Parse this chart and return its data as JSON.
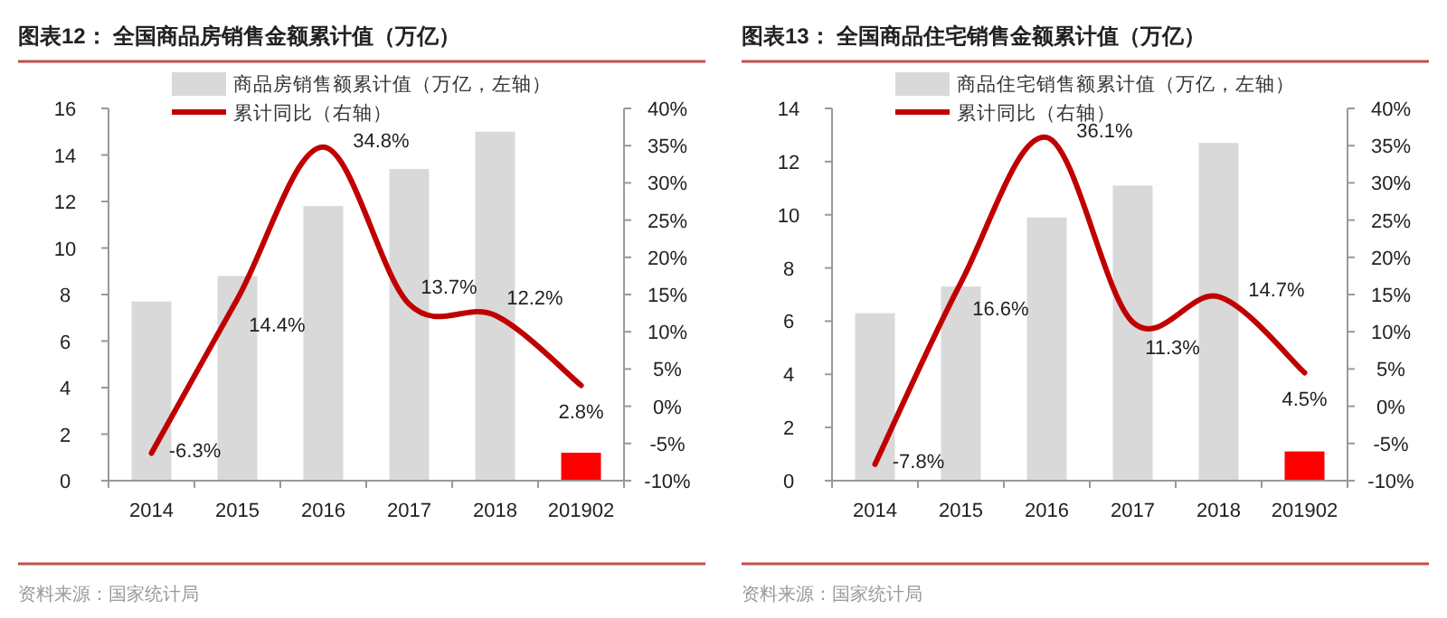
{
  "chart_data": [
    {
      "type": "bar",
      "title": "图表12：  全国商品房销售金额累计值（万亿）",
      "categories": [
        "2014",
        "2015",
        "2016",
        "2017",
        "2018",
        "201902"
      ],
      "series": [
        {
          "name": "商品房销售额累计值（万亿，左轴）",
          "colors": [
            "#d9d9d9",
            "#d9d9d9",
            "#d9d9d9",
            "#d9d9d9",
            "#d9d9d9",
            "#ff0000"
          ],
          "values": [
            7.7,
            8.8,
            11.8,
            13.4,
            15.0,
            1.2
          ]
        },
        {
          "name": "累计同比（右轴）",
          "type": "line",
          "axis": "y2",
          "color": "#c00000",
          "values": [
            -6.3,
            14.4,
            34.8,
            13.7,
            12.2,
            2.8
          ],
          "value_labels": [
            "-6.3%",
            "14.4%",
            "34.8%",
            "13.7%",
            "12.2%",
            "2.8%"
          ]
        }
      ],
      "ylim": [
        0,
        16
      ],
      "yticks": [
        0,
        2,
        4,
        6,
        8,
        10,
        12,
        14,
        16
      ],
      "y2lim": [
        -10,
        40
      ],
      "y2ticks": [
        {
          "value": -10,
          "label": "-10%"
        },
        {
          "value": -5,
          "label": "-5%"
        },
        {
          "value": 0,
          "label": "0%"
        },
        {
          "value": 5,
          "label": "5%"
        },
        {
          "value": 10,
          "label": "10%"
        },
        {
          "value": 15,
          "label": "15%"
        },
        {
          "value": 20,
          "label": "20%"
        },
        {
          "value": 25,
          "label": "25%"
        },
        {
          "value": 30,
          "label": "30%"
        },
        {
          "value": 35,
          "label": "35%"
        },
        {
          "value": 40,
          "label": "40%"
        }
      ],
      "legend": "top",
      "annotations": [
        "资料来源：国家统计局"
      ]
    },
    {
      "type": "bar",
      "title": "图表13：  全国商品住宅销售金额累计值（万亿）",
      "categories": [
        "2014",
        "2015",
        "2016",
        "2017",
        "2018",
        "201902"
      ],
      "series": [
        {
          "name": "商品住宅销售额累计值（万亿，左轴）",
          "colors": [
            "#d9d9d9",
            "#d9d9d9",
            "#d9d9d9",
            "#d9d9d9",
            "#d9d9d9",
            "#ff0000"
          ],
          "values": [
            6.3,
            7.3,
            9.9,
            11.1,
            12.7,
            1.1
          ]
        },
        {
          "name": "累计同比（右轴）",
          "type": "line",
          "axis": "y2",
          "color": "#c00000",
          "values": [
            -7.8,
            16.6,
            36.1,
            11.3,
            14.7,
            4.5
          ],
          "value_labels": [
            "-7.8%",
            "16.6%",
            "36.1%",
            "11.3%",
            "14.7%",
            "4.5%"
          ]
        }
      ],
      "ylim": [
        0,
        14
      ],
      "yticks": [
        0,
        2,
        4,
        6,
        8,
        10,
        12,
        14
      ],
      "y2lim": [
        -10,
        40
      ],
      "y2ticks": [
        {
          "value": -10,
          "label": "-10%"
        },
        {
          "value": -5,
          "label": "-5%"
        },
        {
          "value": 0,
          "label": "0%"
        },
        {
          "value": 5,
          "label": "5%"
        },
        {
          "value": 10,
          "label": "10%"
        },
        {
          "value": 15,
          "label": "15%"
        },
        {
          "value": 20,
          "label": "20%"
        },
        {
          "value": 25,
          "label": "25%"
        },
        {
          "value": 30,
          "label": "30%"
        },
        {
          "value": 35,
          "label": "35%"
        },
        {
          "value": 40,
          "label": "40%"
        }
      ],
      "legend": "top",
      "annotations": [
        "资料来源：国家统计局"
      ]
    }
  ]
}
